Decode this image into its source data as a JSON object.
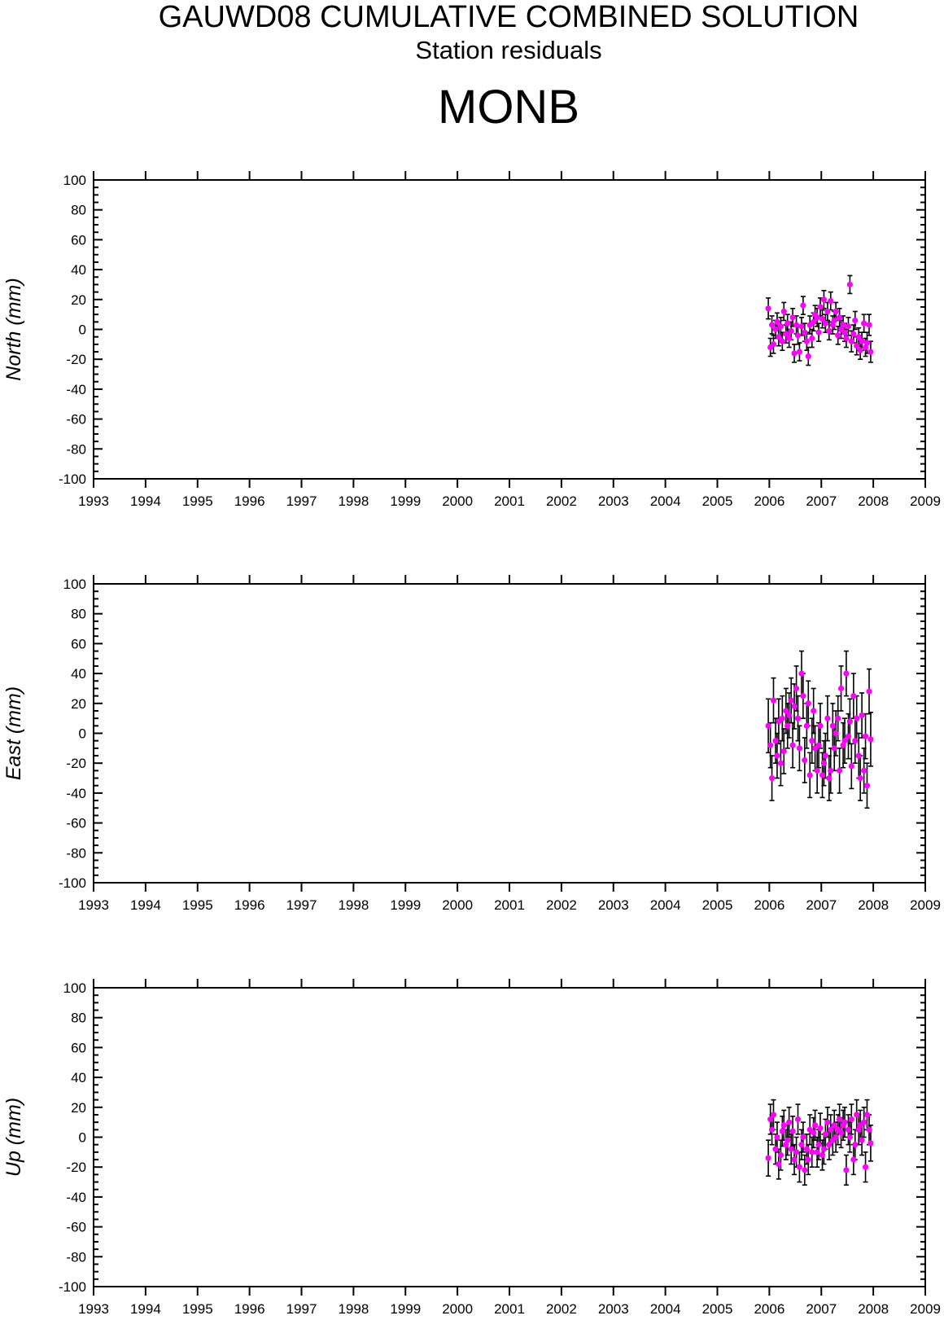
{
  "header": {
    "title": "GAUWD08 CUMULATIVE COMBINED SOLUTION",
    "subtitle": "Station residuals",
    "station": "MONB"
  },
  "colors": {
    "point": "#ff00ff",
    "errorbar": "#000000",
    "axis": "#000000"
  },
  "chart_data": [
    {
      "type": "scatter",
      "ylabel": "North (mm)",
      "xlim": [
        1993,
        2009
      ],
      "ylim": [
        -100,
        100
      ],
      "x_ticks": [
        "1993",
        "1994",
        "1995",
        "1996",
        "1997",
        "1998",
        "1999",
        "2000",
        "2001",
        "2002",
        "2003",
        "2004",
        "2005",
        "2006",
        "2007",
        "2008",
        "2009"
      ],
      "y_ticks": [
        "100",
        "80",
        "60",
        "40",
        "20",
        "0",
        "-20",
        "-40",
        "-60",
        "-80",
        "-100"
      ],
      "grid": false,
      "error_bars": true,
      "x": [
        2005.98,
        2006.02,
        2006.05,
        2006.08,
        2006.12,
        2006.15,
        2006.18,
        2006.22,
        2006.25,
        2006.28,
        2006.32,
        2006.35,
        2006.38,
        2006.42,
        2006.45,
        2006.48,
        2006.52,
        2006.55,
        2006.58,
        2006.62,
        2006.65,
        2006.68,
        2006.72,
        2006.75,
        2006.78,
        2006.82,
        2006.85,
        2006.88,
        2006.92,
        2006.95,
        2006.98,
        2007.02,
        2007.05,
        2007.08,
        2007.12,
        2007.15,
        2007.18,
        2007.22,
        2007.25,
        2007.28,
        2007.32,
        2007.35,
        2007.38,
        2007.42,
        2007.45,
        2007.48,
        2007.52,
        2007.55,
        2007.58,
        2007.62,
        2007.65,
        2007.68,
        2007.72,
        2007.75,
        2007.78,
        2007.82,
        2007.85,
        2007.88,
        2007.92,
        2007.95
      ],
      "y": [
        14,
        -12,
        3,
        -10,
        0,
        5,
        -5,
        2,
        -8,
        12,
        -3,
        4,
        -6,
        -1,
        8,
        -16,
        3,
        -4,
        -15,
        2,
        16,
        -2,
        -8,
        -18,
        3,
        -6,
        5,
        10,
        8,
        -2,
        15,
        7,
        20,
        4,
        12,
        -1,
        19,
        3,
        6,
        12,
        -4,
        8,
        0,
        3,
        -2,
        -6,
        2,
        30,
        -8,
        -3,
        6,
        -11,
        -5,
        -14,
        -8,
        4,
        -12,
        -9,
        3,
        -15
      ],
      "error": [
        7,
        6,
        6,
        6,
        6,
        6,
        6,
        6,
        6,
        6,
        6,
        6,
        6,
        6,
        6,
        6,
        6,
        6,
        6,
        6,
        6,
        6,
        6,
        6,
        6,
        6,
        6,
        6,
        6,
        6,
        6,
        6,
        6,
        6,
        6,
        6,
        6,
        6,
        6,
        6,
        6,
        6,
        6,
        6,
        6,
        6,
        6,
        6,
        7,
        6,
        6,
        6,
        6,
        6,
        6,
        6,
        6,
        7,
        7,
        7
      ]
    },
    {
      "type": "scatter",
      "ylabel": "East (mm)",
      "xlim": [
        1993,
        2009
      ],
      "ylim": [
        -100,
        100
      ],
      "x_ticks": [
        "1993",
        "1994",
        "1995",
        "1996",
        "1997",
        "1998",
        "1999",
        "2000",
        "2001",
        "2002",
        "2003",
        "2004",
        "2005",
        "2006",
        "2007",
        "2008",
        "2009"
      ],
      "y_ticks": [
        "100",
        "80",
        "60",
        "40",
        "20",
        "0",
        "-20",
        "-40",
        "-60",
        "-80",
        "-100"
      ],
      "grid": false,
      "error_bars": true,
      "x": [
        2005.98,
        2006.02,
        2006.05,
        2006.08,
        2006.12,
        2006.15,
        2006.18,
        2006.22,
        2006.25,
        2006.28,
        2006.32,
        2006.35,
        2006.38,
        2006.42,
        2006.45,
        2006.48,
        2006.52,
        2006.55,
        2006.58,
        2006.62,
        2006.65,
        2006.68,
        2006.72,
        2006.75,
        2006.78,
        2006.82,
        2006.85,
        2006.88,
        2006.92,
        2006.95,
        2006.98,
        2007.02,
        2007.05,
        2007.08,
        2007.12,
        2007.15,
        2007.18,
        2007.22,
        2007.25,
        2007.28,
        2007.32,
        2007.35,
        2007.38,
        2007.42,
        2007.45,
        2007.48,
        2007.52,
        2007.55,
        2007.58,
        2007.62,
        2007.65,
        2007.68,
        2007.72,
        2007.75,
        2007.78,
        2007.82,
        2007.85,
        2007.88,
        2007.92,
        2007.95
      ],
      "y": [
        5,
        -8,
        -30,
        22,
        -5,
        -15,
        8,
        -20,
        10,
        -12,
        15,
        5,
        12,
        22,
        -8,
        18,
        30,
        10,
        -10,
        40,
        25,
        -18,
        5,
        20,
        -28,
        -5,
        15,
        -10,
        -25,
        -8,
        5,
        -28,
        -20,
        -15,
        10,
        -30,
        -25,
        5,
        -10,
        0,
        10,
        -25,
        30,
        -8,
        -5,
        40,
        -2,
        8,
        -22,
        25,
        -5,
        10,
        -15,
        -30,
        12,
        -25,
        -2,
        -35,
        28,
        -4
      ],
      "error": [
        18,
        15,
        15,
        15,
        15,
        15,
        15,
        15,
        15,
        15,
        15,
        15,
        15,
        15,
        15,
        15,
        15,
        15,
        15,
        15,
        15,
        15,
        15,
        15,
        15,
        15,
        15,
        15,
        15,
        15,
        15,
        15,
        15,
        15,
        15,
        15,
        15,
        15,
        15,
        15,
        15,
        15,
        15,
        15,
        15,
        15,
        15,
        15,
        15,
        15,
        15,
        15,
        15,
        15,
        15,
        15,
        15,
        15,
        15,
        18
      ]
    },
    {
      "type": "scatter",
      "ylabel": "Up (mm)",
      "xlim": [
        1993,
        2009
      ],
      "ylim": [
        -100,
        100
      ],
      "x_ticks": [
        "1993",
        "1994",
        "1995",
        "1996",
        "1997",
        "1998",
        "1999",
        "2000",
        "2001",
        "2002",
        "2003",
        "2004",
        "2005",
        "2006",
        "2007",
        "2008",
        "2009"
      ],
      "y_ticks": [
        "100",
        "80",
        "60",
        "40",
        "20",
        "0",
        "-20",
        "-40",
        "-60",
        "-80",
        "-100"
      ],
      "grid": false,
      "error_bars": true,
      "x": [
        2005.98,
        2006.02,
        2006.05,
        2006.08,
        2006.12,
        2006.15,
        2006.18,
        2006.22,
        2006.25,
        2006.28,
        2006.32,
        2006.35,
        2006.38,
        2006.42,
        2006.45,
        2006.48,
        2006.52,
        2006.55,
        2006.58,
        2006.62,
        2006.65,
        2006.68,
        2006.72,
        2006.75,
        2006.78,
        2006.82,
        2006.85,
        2006.88,
        2006.92,
        2006.95,
        2006.98,
        2007.02,
        2007.05,
        2007.08,
        2007.12,
        2007.15,
        2007.18,
        2007.22,
        2007.25,
        2007.28,
        2007.32,
        2007.35,
        2007.38,
        2007.42,
        2007.45,
        2007.48,
        2007.52,
        2007.55,
        2007.58,
        2007.62,
        2007.65,
        2007.68,
        2007.72,
        2007.75,
        2007.78,
        2007.82,
        2007.85,
        2007.88,
        2007.92,
        2007.95
      ],
      "y": [
        -14,
        12,
        5,
        15,
        -8,
        0,
        -18,
        -12,
        4,
        8,
        -5,
        -2,
        10,
        -8,
        4,
        -15,
        -10,
        12,
        -20,
        -5,
        0,
        -22,
        -8,
        -15,
        5,
        -10,
        3,
        8,
        -10,
        -5,
        6,
        -12,
        -8,
        2,
        10,
        -5,
        5,
        -2,
        8,
        0,
        5,
        12,
        3,
        8,
        10,
        -22,
        5,
        0,
        12,
        -15,
        -5,
        15,
        5,
        8,
        -2,
        10,
        -20,
        15,
        5,
        -4
      ],
      "error": [
        12,
        10,
        10,
        10,
        10,
        10,
        10,
        10,
        10,
        10,
        10,
        10,
        10,
        10,
        10,
        10,
        10,
        10,
        10,
        10,
        10,
        10,
        10,
        10,
        10,
        10,
        10,
        10,
        10,
        10,
        10,
        10,
        10,
        10,
        10,
        10,
        10,
        10,
        10,
        10,
        10,
        10,
        10,
        10,
        10,
        10,
        10,
        10,
        10,
        10,
        10,
        10,
        10,
        10,
        10,
        10,
        10,
        10,
        10,
        12
      ]
    }
  ]
}
